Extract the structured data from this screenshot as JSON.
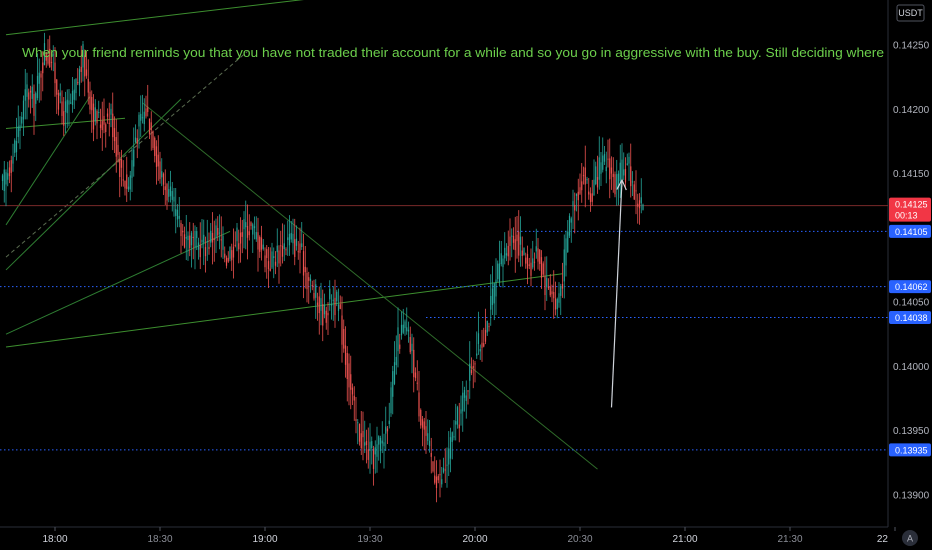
{
  "chart_data": {
    "type": "candlestick",
    "currency": "USDT",
    "annotation": "When your friend reminds you that you have not traded their account for a while and so you go in aggressive with the buy. Still deciding where",
    "y_ticks": [
      "0.14250",
      "0.14200",
      "0.14150",
      "0.14050",
      "0.14000",
      "0.13950",
      "0.13900"
    ],
    "ylim": [
      0.13875,
      0.14285
    ],
    "x_ticks": [
      {
        "label": "18:00",
        "minute": 0,
        "strong": true
      },
      {
        "label": "18:30",
        "minute": 30,
        "strong": false
      },
      {
        "label": "19:00",
        "minute": 60,
        "strong": true
      },
      {
        "label": "19:30",
        "minute": 90,
        "strong": false
      },
      {
        "label": "20:00",
        "minute": 120,
        "strong": true
      },
      {
        "label": "20:30",
        "minute": 150,
        "strong": false
      },
      {
        "label": "21:00",
        "minute": 180,
        "strong": true
      },
      {
        "label": "21:30",
        "minute": 210,
        "strong": false
      },
      {
        "label": "22",
        "minute": 240,
        "strong": true
      }
    ],
    "price_levels": [
      {
        "price": 0.14125,
        "label": "0.14125",
        "sublabel": "00:13",
        "color": "#f23645",
        "style": "solid"
      },
      {
        "price": 0.14105,
        "label": "0.14105",
        "color": "#2962ff",
        "style": "dotted"
      },
      {
        "price": 0.14062,
        "label": "0.14062",
        "color": "#2962ff",
        "style": "dotted"
      },
      {
        "price": 0.14038,
        "label": "0.14038",
        "color": "#2962ff",
        "style": "dotted"
      },
      {
        "price": 0.13935,
        "label": "0.13935",
        "color": "#2962ff",
        "style": "dotted"
      }
    ],
    "candle_anchors": [
      [
        -15,
        0.1414
      ],
      [
        -12,
        0.14165
      ],
      [
        -8,
        0.14215
      ],
      [
        -6,
        0.14205
      ],
      [
        -3,
        0.14245
      ],
      [
        -1,
        0.1424
      ],
      [
        2,
        0.14195
      ],
      [
        5,
        0.14205
      ],
      [
        8,
        0.1424
      ],
      [
        11,
        0.14195
      ],
      [
        13,
        0.1419
      ],
      [
        16,
        0.14195
      ],
      [
        19,
        0.1415
      ],
      [
        21,
        0.1414
      ],
      [
        23,
        0.1418
      ],
      [
        26,
        0.142
      ],
      [
        28,
        0.1418
      ],
      [
        30,
        0.1415
      ],
      [
        33,
        0.1413
      ],
      [
        36,
        0.14105
      ],
      [
        40,
        0.14095
      ],
      [
        43,
        0.14095
      ],
      [
        46,
        0.14105
      ],
      [
        49,
        0.14085
      ],
      [
        52,
        0.141
      ],
      [
        55,
        0.1411
      ],
      [
        58,
        0.141
      ],
      [
        61,
        0.1408
      ],
      [
        64,
        0.1409
      ],
      [
        67,
        0.141
      ],
      [
        70,
        0.1409
      ],
      [
        72,
        0.1407
      ],
      [
        75,
        0.1405
      ],
      [
        77,
        0.1404
      ],
      [
        79,
        0.14055
      ],
      [
        81,
        0.14045
      ],
      [
        84,
        0.1399
      ],
      [
        86,
        0.13955
      ],
      [
        89,
        0.13935
      ],
      [
        91,
        0.1393
      ],
      [
        94,
        0.13945
      ],
      [
        96,
        0.13975
      ],
      [
        98,
        0.1402
      ],
      [
        100,
        0.1403
      ],
      [
        102,
        0.1401
      ],
      [
        104,
        0.1397
      ],
      [
        106,
        0.13945
      ],
      [
        108,
        0.1392
      ],
      [
        110,
        0.1391
      ],
      [
        112,
        0.13925
      ],
      [
        114,
        0.1395
      ],
      [
        116,
        0.13965
      ],
      [
        118,
        0.1399
      ],
      [
        120,
        0.1401
      ],
      [
        122,
        0.1402
      ],
      [
        124,
        0.1404
      ],
      [
        126,
        0.14065
      ],
      [
        128,
        0.14085
      ],
      [
        130,
        0.141
      ],
      [
        132,
        0.141
      ],
      [
        134,
        0.14085
      ],
      [
        136,
        0.1408
      ],
      [
        138,
        0.1409
      ],
      [
        140,
        0.14065
      ],
      [
        142,
        0.1406
      ],
      [
        143,
        0.14045
      ],
      [
        145,
        0.1407
      ],
      [
        147,
        0.14115
      ],
      [
        149,
        0.14135
      ],
      [
        151,
        0.1415
      ],
      [
        153,
        0.1413
      ],
      [
        155,
        0.1415
      ],
      [
        158,
        0.1416
      ],
      [
        160,
        0.1414
      ],
      [
        162,
        0.1415
      ],
      [
        164,
        0.14155
      ],
      [
        166,
        0.1413
      ],
      [
        168,
        0.14125
      ]
    ],
    "trend_lines": [
      {
        "from": [
          -14,
          0.14258
        ],
        "to": [
          101,
          0.14295
        ],
        "color": "#3d8f2f",
        "style": "solid"
      },
      {
        "from": [
          -14,
          0.14185
        ],
        "to": [
          20,
          0.14193
        ],
        "color": "#3d8f2f",
        "style": "solid"
      },
      {
        "from": [
          -14,
          0.1411
        ],
        "to": [
          10,
          0.1421
        ],
        "color": "#2e7d32",
        "style": "solid"
      },
      {
        "from": [
          -14,
          0.14075
        ],
        "to": [
          36,
          0.14208
        ],
        "color": "#2e7d32",
        "style": "solid"
      },
      {
        "from": [
          -14,
          0.14025
        ],
        "to": [
          50,
          0.14105
        ],
        "color": "#2e7d32",
        "style": "solid"
      },
      {
        "from": [
          -14,
          0.14085
        ],
        "to": [
          55,
          0.14245
        ],
        "color": "#5a6b50",
        "style": "dashed"
      },
      {
        "from": [
          -14,
          0.14015
        ],
        "to": [
          145,
          0.14072
        ],
        "color": "#3d8f2f",
        "style": "solid"
      },
      {
        "from": [
          25,
          0.14205
        ],
        "to": [
          155,
          0.1392
        ],
        "color": "#2f6b2a",
        "style": "solid"
      }
    ],
    "arrow": {
      "from": [
        159,
        0.13968
      ],
      "to": [
        162,
        0.14145
      ],
      "color": "#cfd3da"
    }
  }
}
